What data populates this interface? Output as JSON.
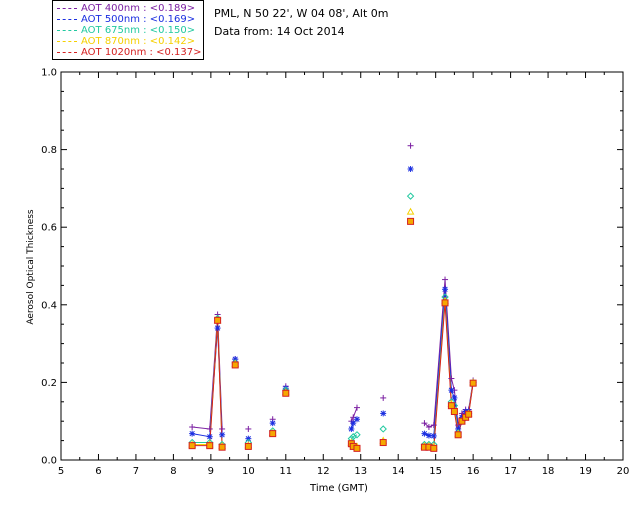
{
  "header": {
    "location": "PML, N 50 22', W 04 08', Alt 0m",
    "date": "Data from: 14 Oct 2014"
  },
  "chart_data": {
    "type": "scatter",
    "xlabel": "Time (GMT)",
    "ylabel": "Aerosol Optical Thickness",
    "xlim": [
      5,
      20
    ],
    "ylim": [
      0.0,
      1.0
    ],
    "x_ticks": [
      "5",
      "6",
      "7",
      "8",
      "9",
      "10",
      "11",
      "12",
      "13",
      "14",
      "15",
      "16",
      "17",
      "18",
      "19",
      "20"
    ],
    "y_ticks": [
      "0.0",
      "0.2",
      "0.4",
      "0.6",
      "0.8",
      "1.0"
    ],
    "grid": false,
    "legend_position": "top-left",
    "series": [
      {
        "name": "AOT  400nm : <0.189>",
        "color": "#7b1fa2",
        "marker": "plus",
        "x": [
          8.5,
          8.97,
          9.18,
          9.3,
          9.65,
          10.0,
          10.65,
          11.0,
          12.75,
          12.8,
          12.9,
          13.6,
          14.33,
          14.7,
          14.82,
          14.95,
          15.25,
          15.42,
          15.5,
          15.6,
          15.7,
          15.8,
          15.88,
          16.0
        ],
        "y": [
          0.085,
          0.08,
          0.375,
          0.08,
          0.26,
          0.08,
          0.105,
          0.19,
          0.1,
          0.11,
          0.135,
          0.16,
          0.81,
          0.095,
          0.085,
          0.09,
          0.465,
          0.21,
          0.18,
          0.09,
          0.12,
          0.13,
          0.13,
          0.205
        ],
        "connect": [
          [
            0,
            1,
            2,
            3
          ],
          [
            8,
            9,
            10
          ],
          [
            13,
            14,
            15,
            16,
            17,
            18,
            19,
            20,
            21,
            22,
            23
          ]
        ]
      },
      {
        "name": "AOT  500nm : <0.169>",
        "color": "#1a2ee0",
        "marker": "asterisk",
        "x": [
          8.5,
          8.97,
          9.18,
          9.3,
          9.65,
          10.0,
          10.65,
          11.0,
          12.75,
          12.8,
          12.9,
          13.6,
          14.33,
          14.7,
          14.82,
          14.95,
          15.25,
          15.42,
          15.5,
          15.6,
          15.7,
          15.8,
          15.88,
          16.0
        ],
        "y": [
          0.068,
          0.06,
          0.34,
          0.065,
          0.26,
          0.055,
          0.095,
          0.185,
          0.08,
          0.095,
          0.105,
          0.12,
          0.75,
          0.068,
          0.063,
          0.062,
          0.44,
          0.18,
          0.16,
          0.08,
          0.11,
          0.125,
          0.125,
          0.2
        ],
        "connect": [
          [
            0,
            1,
            2,
            3
          ],
          [
            8,
            9,
            10
          ],
          [
            13,
            14,
            15,
            16,
            17,
            18,
            19,
            20,
            21,
            22,
            23
          ]
        ]
      },
      {
        "name": "AOT  675nm : <0.150>",
        "color": "#22c9a0",
        "marker": "diamond",
        "x": [
          8.5,
          8.97,
          9.18,
          9.3,
          9.65,
          10.0,
          10.65,
          11.0,
          12.75,
          12.8,
          12.9,
          13.6,
          14.33,
          14.7,
          14.82,
          14.95,
          15.25,
          15.42,
          15.5,
          15.6,
          15.7,
          15.8,
          15.88,
          16.0
        ],
        "y": [
          0.045,
          0.045,
          0.365,
          0.04,
          0.25,
          0.045,
          0.075,
          0.18,
          0.055,
          0.06,
          0.065,
          0.08,
          0.68,
          0.04,
          0.04,
          0.04,
          0.42,
          0.15,
          0.14,
          0.07,
          0.1,
          0.11,
          0.12,
          0.2
        ],
        "connect": [
          [
            0,
            1,
            2,
            3
          ],
          [
            8,
            9,
            10
          ],
          [
            13,
            14,
            15,
            16,
            17,
            18,
            19,
            20,
            21,
            22,
            23
          ]
        ]
      },
      {
        "name": "AOT  870nm : <0.142>",
        "color": "#f5d000",
        "marker": "triangle",
        "x": [
          8.5,
          8.97,
          9.18,
          9.3,
          9.65,
          10.0,
          10.65,
          11.0,
          12.75,
          12.8,
          12.9,
          13.6,
          14.33,
          14.7,
          14.82,
          14.95,
          15.25,
          15.42,
          15.5,
          15.6,
          15.7,
          15.8,
          15.88,
          16.0
        ],
        "y": [
          0.04,
          0.04,
          0.36,
          0.036,
          0.248,
          0.038,
          0.07,
          0.175,
          0.045,
          0.04,
          0.035,
          0.05,
          0.64,
          0.036,
          0.036,
          0.034,
          0.41,
          0.145,
          0.13,
          0.068,
          0.1,
          0.11,
          0.12,
          0.2
        ],
        "connect": [
          [
            0,
            1,
            2,
            3
          ],
          [
            8,
            9,
            10
          ],
          [
            13,
            14,
            15,
            16,
            17,
            18,
            19,
            20,
            21,
            22,
            23
          ]
        ]
      },
      {
        "name": "AOT 1020nm : <0.137>",
        "color": "#d42020",
        "marker": "square",
        "x": [
          8.5,
          8.97,
          9.18,
          9.3,
          9.65,
          10.0,
          10.65,
          11.0,
          12.75,
          12.8,
          12.9,
          13.6,
          14.33,
          14.7,
          14.82,
          14.95,
          15.25,
          15.42,
          15.5,
          15.6,
          15.7,
          15.8,
          15.88,
          16.0
        ],
        "y": [
          0.037,
          0.037,
          0.36,
          0.033,
          0.245,
          0.035,
          0.068,
          0.172,
          0.042,
          0.035,
          0.03,
          0.045,
          0.615,
          0.033,
          0.033,
          0.03,
          0.405,
          0.14,
          0.125,
          0.065,
          0.1,
          0.11,
          0.118,
          0.198
        ],
        "connect": [
          [
            0,
            1,
            2,
            3
          ],
          [
            8,
            9,
            10
          ],
          [
            13,
            14,
            15,
            16,
            17,
            18,
            19,
            20,
            21,
            22,
            23
          ]
        ]
      }
    ]
  }
}
